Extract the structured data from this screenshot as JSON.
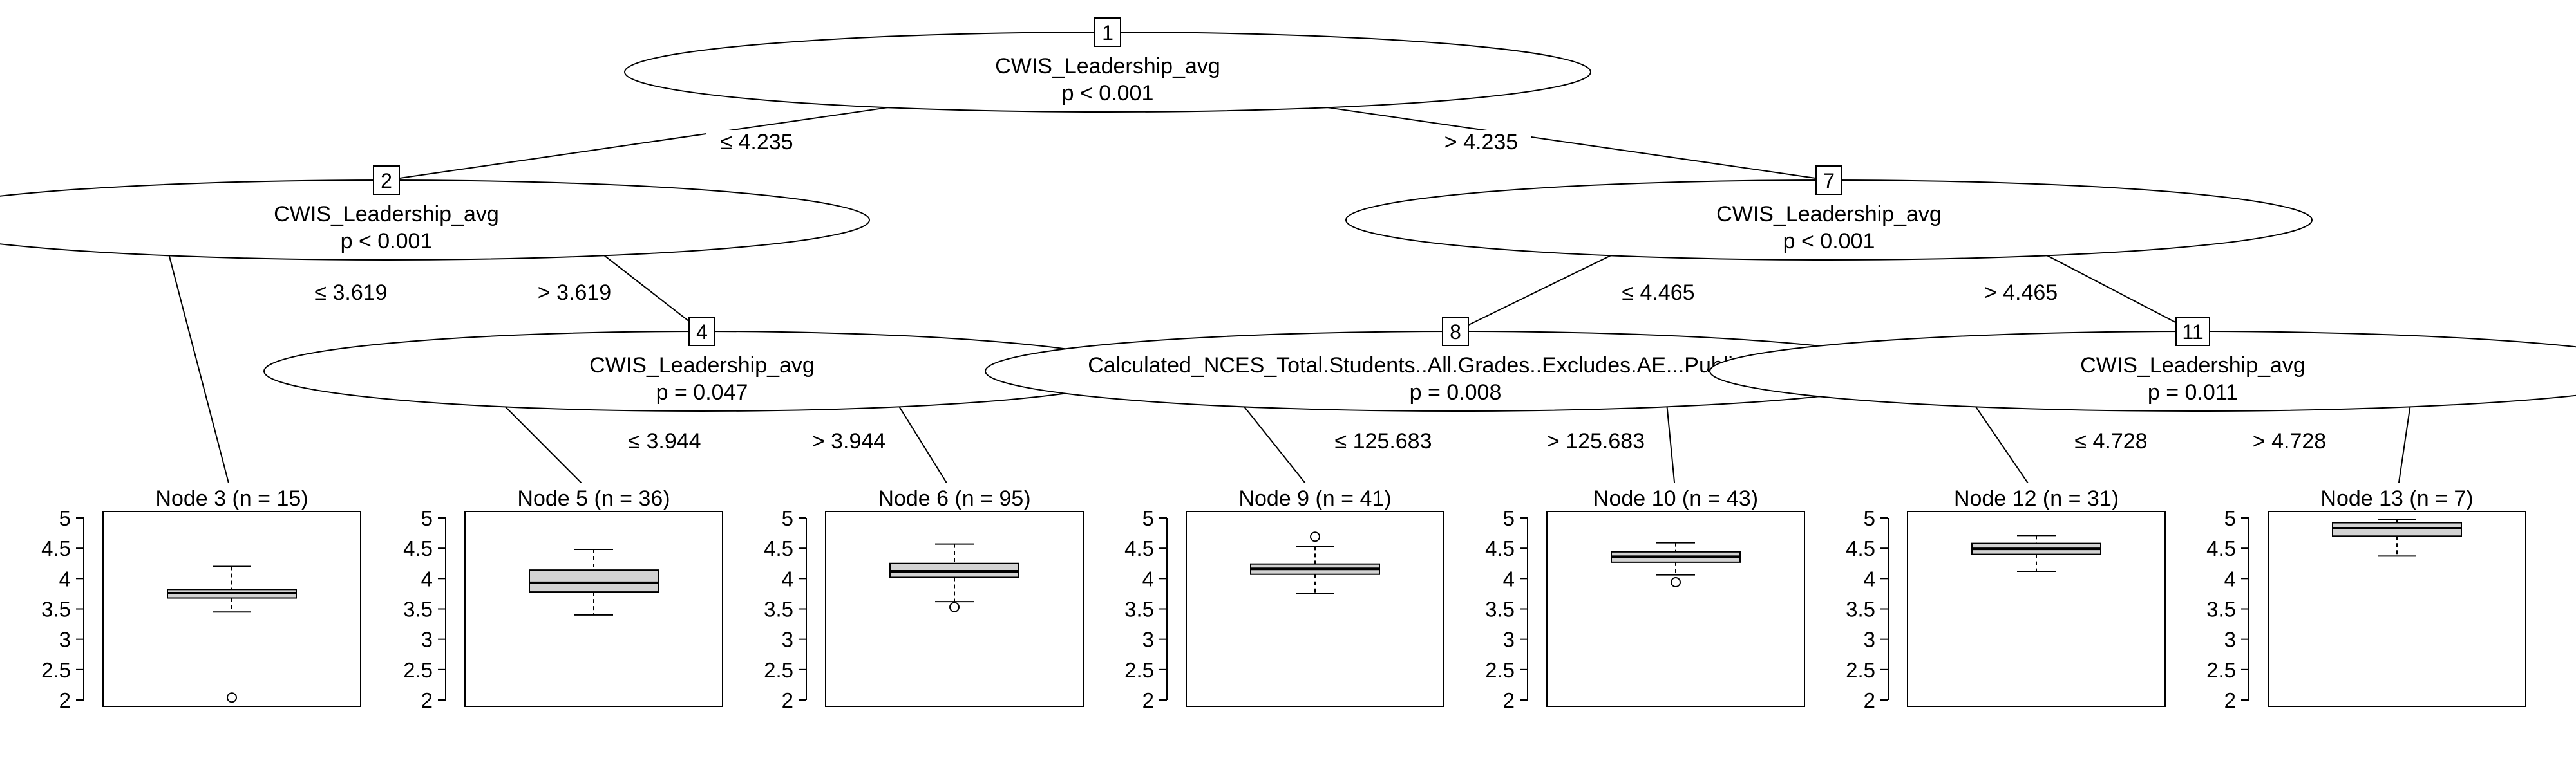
{
  "colors": {
    "line": "#000000",
    "box_fill": "#d3d3d3",
    "background": "#ffffff"
  },
  "tree": {
    "inner_nodes": [
      {
        "id": "1",
        "variable": "CWIS_Leadership_avg",
        "p": "p < 0.001"
      },
      {
        "id": "2",
        "variable": "CWIS_Leadership_avg",
        "p": "p < 0.001"
      },
      {
        "id": "4",
        "variable": "CWIS_Leadership_avg",
        "p": "p = 0.047"
      },
      {
        "id": "7",
        "variable": "CWIS_Leadership_avg",
        "p": "p < 0.001"
      },
      {
        "id": "8",
        "variable": "Calculated_NCES_Total.Students..All.Grades..Excludes.AE...Public.School.",
        "p": "p = 0.008"
      },
      {
        "id": "11",
        "variable": "CWIS_Leadership_avg",
        "p": "p = 0.011"
      }
    ],
    "edges": [
      {
        "from": "1",
        "to": "2",
        "label": "≤ 4.235"
      },
      {
        "from": "1",
        "to": "7",
        "label": "> 4.235"
      },
      {
        "from": "2",
        "to": "3",
        "label": "≤ 3.619"
      },
      {
        "from": "2",
        "to": "4",
        "label": "> 3.619"
      },
      {
        "from": "4",
        "to": "5",
        "label": "≤ 3.944"
      },
      {
        "from": "4",
        "to": "6",
        "label": "> 3.944"
      },
      {
        "from": "7",
        "to": "8",
        "label": "≤ 4.465"
      },
      {
        "from": "7",
        "to": "11",
        "label": "> 4.465"
      },
      {
        "from": "8",
        "to": "9",
        "label": "≤ 125.683"
      },
      {
        "from": "8",
        "to": "10",
        "label": "> 125.683"
      },
      {
        "from": "11",
        "to": "12",
        "label": "≤ 4.728"
      },
      {
        "from": "11",
        "to": "13",
        "label": "> 4.728"
      }
    ],
    "terminal_nodes": [
      {
        "id": "3",
        "title": "Node 3 (n = 15)",
        "box": {
          "lw": 3.45,
          "q1": 3.68,
          "median": 3.76,
          "q3": 3.82,
          "uw": 4.2
        },
        "outliers": [
          2.04
        ]
      },
      {
        "id": "5",
        "title": "Node 5 (n = 36)",
        "box": {
          "lw": 3.4,
          "q1": 3.78,
          "median": 3.93,
          "q3": 4.14,
          "uw": 4.48
        },
        "outliers": []
      },
      {
        "id": "6",
        "title": "Node 6 (n = 95)",
        "box": {
          "lw": 3.62,
          "q1": 4.02,
          "median": 4.12,
          "q3": 4.25,
          "uw": 4.57
        },
        "outliers": [
          3.53
        ]
      },
      {
        "id": "9",
        "title": "Node 9 (n = 41)",
        "box": {
          "lw": 3.76,
          "q1": 4.07,
          "median": 4.16,
          "q3": 4.24,
          "uw": 4.53
        },
        "outliers": [
          4.69
        ]
      },
      {
        "id": "10",
        "title": "Node 10 (n = 43)",
        "box": {
          "lw": 4.06,
          "q1": 4.27,
          "median": 4.36,
          "q3": 4.44,
          "uw": 4.59
        },
        "outliers": [
          3.94
        ]
      },
      {
        "id": "12",
        "title": "Node 12 (n = 31)",
        "box": {
          "lw": 4.12,
          "q1": 4.4,
          "median": 4.49,
          "q3": 4.58,
          "uw": 4.71
        },
        "outliers": []
      },
      {
        "id": "13",
        "title": "Node 13 (n = 7)",
        "box": {
          "lw": 4.37,
          "q1": 4.7,
          "median": 4.83,
          "q3": 4.92,
          "uw": 4.97
        },
        "outliers": []
      }
    ],
    "axis": {
      "ticks": [
        "5",
        "4.5",
        "4",
        "3.5",
        "3",
        "2.5",
        "2"
      ],
      "min": 2,
      "max": 5
    }
  }
}
